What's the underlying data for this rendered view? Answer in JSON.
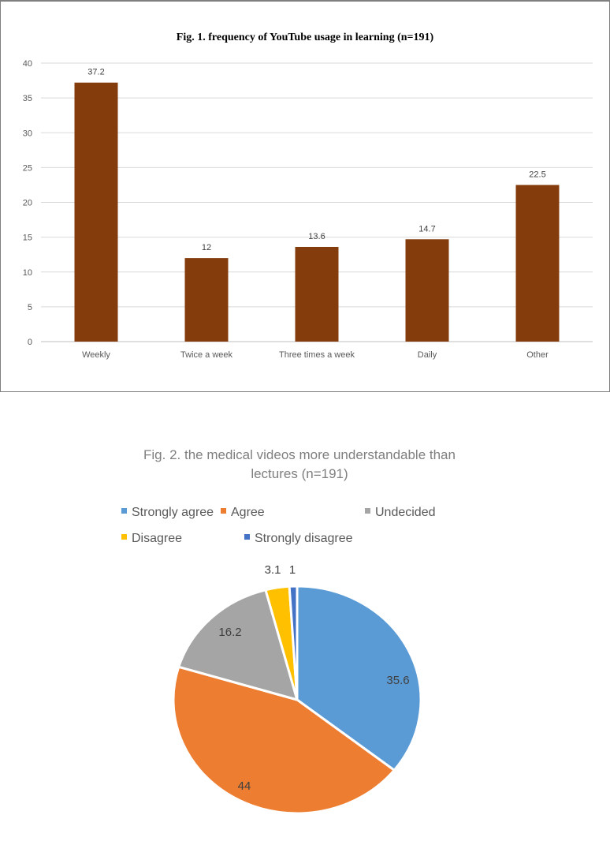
{
  "chart_data": [
    {
      "type": "bar",
      "title": "Fig. 1. frequency of YouTube usage in learning (n=191)",
      "categories": [
        "Weekly",
        "Twice a week",
        "Three times a week",
        "Daily",
        "Other"
      ],
      "values": [
        37.2,
        12,
        13.6,
        14.7,
        22.5
      ],
      "data_labels": [
        "37.2",
        "12",
        "13.6",
        "14.7",
        "22.5"
      ],
      "yticks": [
        "0",
        "5",
        "10",
        "15",
        "20",
        "25",
        "30",
        "35",
        "40"
      ],
      "ylim": [
        0,
        40
      ],
      "grid": true,
      "color": "#843C0C",
      "xlabel": "",
      "ylabel": ""
    },
    {
      "type": "pie",
      "title": "Fig. 2. the medical videos more understandable than lectures (n=191)",
      "title_lines": [
        "Fig. 2. the medical videos more understandable than",
        "lectures (n=191)"
      ],
      "labels": [
        "Strongly agree",
        "Agree",
        "Undecided",
        "Disagree",
        "Strongly disagree"
      ],
      "values": [
        35.6,
        44,
        16.2,
        3.1,
        1
      ],
      "data_labels": [
        "35.6",
        "44",
        "16.2",
        "3.1",
        "1"
      ],
      "colors": [
        "#5B9BD5",
        "#ED7D31",
        "#A5A5A5",
        "#FFC000",
        "#4472C4"
      ],
      "legend": "top"
    }
  ]
}
